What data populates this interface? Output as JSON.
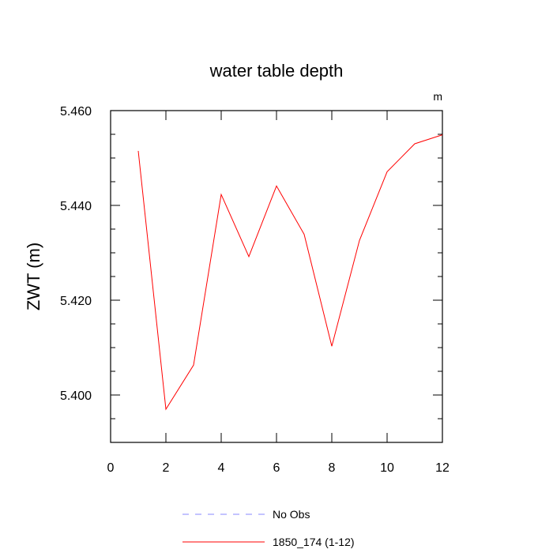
{
  "chart_data": {
    "type": "line",
    "title": "water table depth",
    "units_label": "m",
    "ylabel": "ZWT  (m)",
    "xlabel": "",
    "xlim": [
      0,
      12
    ],
    "ylim": [
      5.39,
      5.46
    ],
    "xticks": [
      0,
      2,
      4,
      6,
      8,
      10,
      12
    ],
    "xtick_labels": [
      "0",
      "2",
      "4",
      "6",
      "8",
      "10",
      "12"
    ],
    "yticks": [
      5.4,
      5.42,
      5.44,
      5.46
    ],
    "ytick_labels": [
      "5.400",
      "5.420",
      "5.440",
      "5.460"
    ],
    "grid": false,
    "legend_position": "bottom",
    "series": [
      {
        "name": "1850_174 (1-12)",
        "color": "#ff0000",
        "style": "solid",
        "x": [
          1,
          2,
          3,
          4,
          5,
          6,
          7,
          8,
          9,
          10,
          11,
          12
        ],
        "values": [
          5.4515,
          5.397,
          5.4063,
          5.4423,
          5.4292,
          5.4441,
          5.4339,
          5.4103,
          5.4326,
          5.4471,
          5.453,
          5.4549
        ]
      }
    ],
    "legend": [
      {
        "label": "No Obs",
        "color": "#8888ff",
        "style": "dashed"
      },
      {
        "label": "1850_174 (1-12)",
        "color": "#ff0000",
        "style": "solid"
      }
    ]
  }
}
